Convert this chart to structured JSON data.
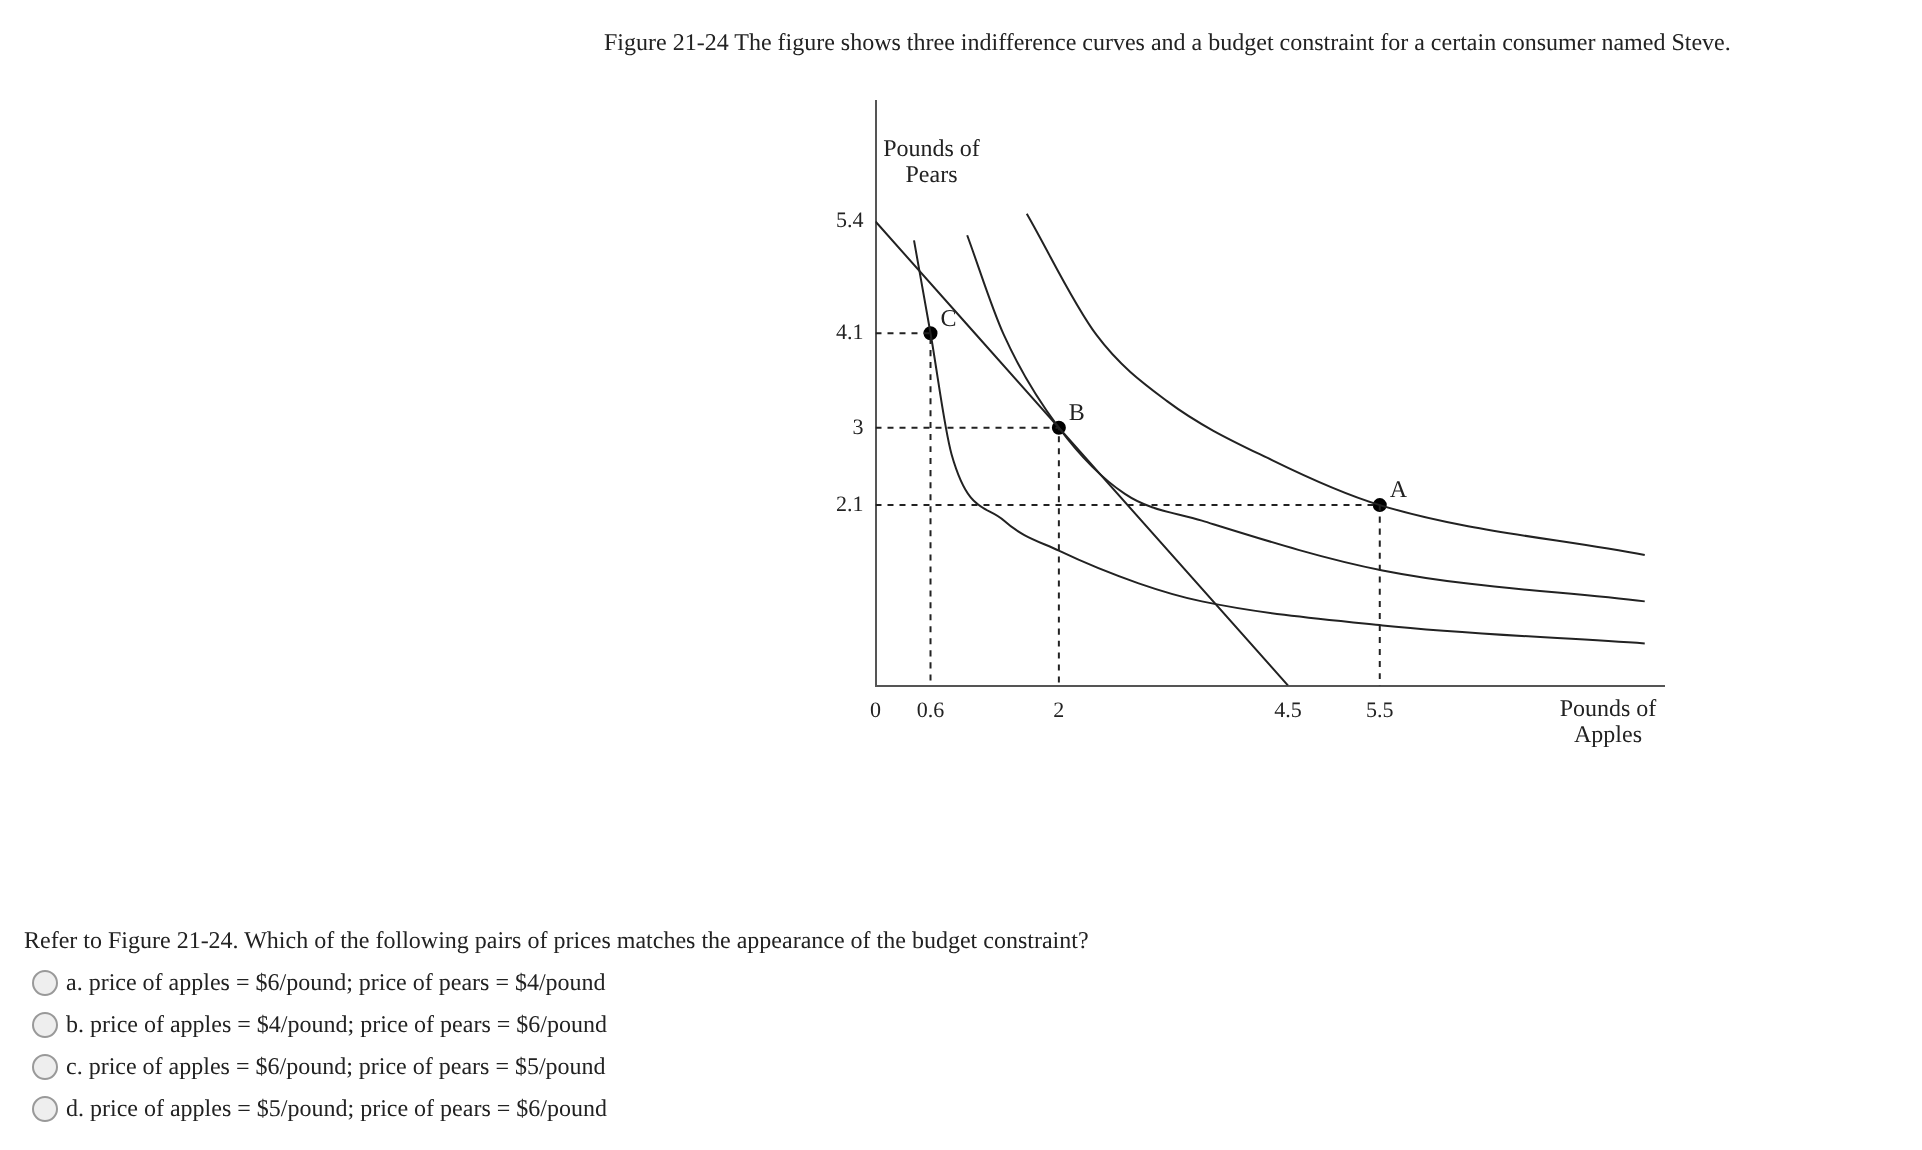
{
  "chart_data": {
    "type": "line",
    "title": "Figure 21-24 The figure shows three indifference curves and a budget constraint for a certain consumer named Steve.",
    "xlabel": "Pounds of Apples",
    "ylabel": "Pounds of Pears",
    "xlim": [
      0,
      8.6
    ],
    "ylim": [
      0,
      6.8
    ],
    "xticks": [
      0,
      0.6,
      2,
      4.5,
      5.5
    ],
    "yticks": [
      2.1,
      3,
      4.1,
      5.4
    ],
    "grid": false,
    "legend": false,
    "series": [
      {
        "color": "#222222",
        "line_style": "solid",
        "x": [
          0.42,
          0.6,
          0.83,
          1.4,
          2.0,
          2.87,
          3.56,
          5.53,
          8.39
        ],
        "values": [
          5.18,
          4.1,
          2.69,
          1.92,
          1.57,
          1.19,
          0.98,
          0.7,
          0.49
        ]
      },
      {
        "color": "#222222",
        "line_style": "solid",
        "x": [
          1.0,
          1.4,
          2.0,
          2.72,
          3.56,
          5.53,
          8.39
        ],
        "values": [
          5.24,
          4.08,
          3.0,
          2.23,
          1.92,
          1.34,
          0.98
        ]
      },
      {
        "color": "#222222",
        "line_style": "solid",
        "x": [
          1.65,
          2.41,
          3.18,
          4.33,
          5.5,
          8.39
        ],
        "values": [
          5.49,
          4.08,
          3.31,
          2.62,
          2.1,
          1.52
        ]
      },
      {
        "color": "#222222",
        "line_style": "solid",
        "x": [
          0,
          4.5
        ],
        "values": [
          5.4,
          0
        ]
      },
      {
        "color": "#222222",
        "line_style": "dashed",
        "x": [
          0,
          0.6,
          0.6
        ],
        "values": [
          4.1,
          4.1,
          0
        ]
      },
      {
        "color": "#222222",
        "line_style": "dashed",
        "x": [
          0,
          2,
          2
        ],
        "values": [
          3,
          3,
          0
        ]
      },
      {
        "color": "#222222",
        "line_style": "dashed",
        "x": [
          0,
          5.5,
          5.5
        ],
        "values": [
          2.1,
          2.1,
          0
        ]
      },
      {
        "type": "scatter",
        "color": "#000000",
        "marker": "circle",
        "x": [
          0.6,
          2,
          5.5
        ],
        "values": [
          4.1,
          3,
          2.1
        ]
      }
    ],
    "annotations": [
      {
        "text": "C",
        "x": 0.6,
        "y": 4.1
      },
      {
        "text": "B",
        "x": 2,
        "y": 3
      },
      {
        "text": "A",
        "x": 5.5,
        "y": 2.1
      },
      "Refer to Figure 21-24. Which of the following pairs of prices matches the appearance of the budget constraint?",
      "a. price of apples = $6/pound; price of pears = $4/pound",
      "b. price of apples = $4/pound; price of pears = $6/pound",
      "c. price of apples = $6/pound; price of pears = $5/pound",
      "d. price of apples = $5/pound; price of pears = $6/pound"
    ]
  }
}
